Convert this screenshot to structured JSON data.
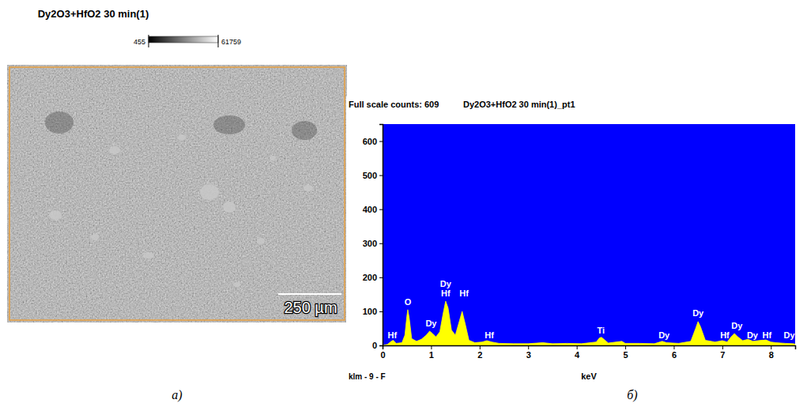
{
  "image_panel": {
    "title": "Dy2O3+HfO2 30 min(1)",
    "colorbar": {
      "min": 455,
      "max": 61759
    },
    "scale_bar": "250 µm",
    "caption": "а)"
  },
  "chart_data": {
    "type": "area",
    "title": "Dy2O3+HfO2 30 min(1)_pt1",
    "subtitle": "Full scale counts: 609",
    "footer": "klm - 9 - F",
    "x_label": "keV",
    "caption": "б)",
    "color": "#ffff00",
    "x": [
      0.0,
      0.1,
      0.18,
      0.22,
      0.28,
      0.4,
      0.46,
      0.5,
      0.52,
      0.55,
      0.6,
      0.7,
      0.8,
      0.9,
      0.97,
      1.03,
      1.1,
      1.18,
      1.25,
      1.3,
      1.35,
      1.42,
      1.5,
      1.58,
      1.64,
      1.7,
      1.78,
      1.9,
      2.05,
      2.15,
      2.25,
      2.4,
      2.7,
      3.0,
      3.3,
      3.5,
      3.8,
      4.1,
      4.4,
      4.47,
      4.51,
      4.56,
      4.65,
      4.93,
      5.0,
      5.3,
      5.6,
      5.76,
      5.85,
      6.1,
      6.35,
      6.45,
      6.5,
      6.55,
      6.65,
      6.85,
      7.0,
      7.1,
      7.18,
      7.25,
      7.32,
      7.42,
      7.53,
      7.63,
      7.8,
      7.9,
      8.0,
      8.1,
      8.3,
      8.45,
      8.5
    ],
    "values": [
      0,
      3,
      12,
      15,
      6,
      8,
      30,
      85,
      105,
      80,
      20,
      12,
      18,
      30,
      42,
      35,
      25,
      40,
      95,
      130,
      110,
      45,
      30,
      70,
      100,
      65,
      15,
      8,
      10,
      14,
      10,
      6,
      5,
      5,
      8,
      5,
      6,
      5,
      10,
      22,
      24,
      18,
      7,
      12,
      6,
      6,
      5,
      12,
      8,
      6,
      12,
      50,
      70,
      55,
      15,
      10,
      14,
      10,
      25,
      35,
      25,
      14,
      18,
      12,
      15,
      16,
      10,
      8,
      6,
      5,
      4
    ],
    "xlim": [
      0,
      8.5
    ],
    "xticks": [
      0,
      1,
      2,
      3,
      4,
      5,
      6,
      7,
      8
    ],
    "ylim": [
      0,
      650
    ],
    "yticks": [
      0,
      100,
      200,
      300,
      400,
      500,
      600
    ],
    "annotations": [
      {
        "text": "Hf",
        "x": 0.2,
        "y": 22
      },
      {
        "text": "O",
        "x": 0.52,
        "y": 118
      },
      {
        "text": "Dy",
        "x": 1.0,
        "y": 55
      },
      {
        "text": "Dy",
        "x": 1.3,
        "y": 172
      },
      {
        "text": "Hf",
        "x": 1.3,
        "y": 143
      },
      {
        "text": "Hf",
        "x": 1.68,
        "y": 143
      },
      {
        "text": "Hf",
        "x": 2.2,
        "y": 22
      },
      {
        "text": "Ti",
        "x": 4.5,
        "y": 35
      },
      {
        "text": "Dy",
        "x": 5.8,
        "y": 22
      },
      {
        "text": "Dy",
        "x": 6.5,
        "y": 85
      },
      {
        "text": "Hf",
        "x": 7.05,
        "y": 22
      },
      {
        "text": "Dy",
        "x": 7.3,
        "y": 48
      },
      {
        "text": "Dy",
        "x": 7.62,
        "y": 22
      },
      {
        "text": "Hf",
        "x": 7.92,
        "y": 22
      },
      {
        "text": "Dy",
        "x": 8.38,
        "y": 22
      }
    ]
  }
}
